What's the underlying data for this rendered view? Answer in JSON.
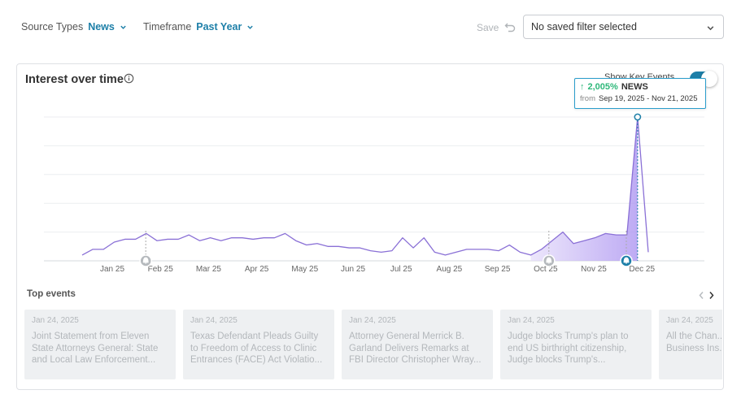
{
  "filters": {
    "source_label": "Source Types",
    "source_value": "News",
    "timeframe_label": "Timeframe",
    "timeframe_value": "Past Year",
    "save_label": "Save",
    "saved_filter_value": "No saved filter selected"
  },
  "card": {
    "title": "Interest over time",
    "key_events_label": "Show Key Events",
    "key_events_on": true
  },
  "tooltip": {
    "change": "2,005%",
    "category": "NEWS",
    "from_label": "from",
    "range": "Sep 19, 2025 - Nov 21, 2025"
  },
  "colors": {
    "accent": "#1d7fa8",
    "line": "#8a70d6",
    "area_start": "#e6defa",
    "area_end": "#a88ff0",
    "positive": "#2eb87a"
  },
  "chart_data": {
    "type": "line",
    "x_ticks": [
      "Jan 25",
      "Feb 25",
      "Mar 25",
      "Apr 25",
      "May 25",
      "Jun 25",
      "Jul 25",
      "Aug 25",
      "Sep 25",
      "Oct 25",
      "Nov 25",
      "Dec 25"
    ],
    "ylim": [
      0,
      100
    ],
    "grid": true,
    "series": [
      {
        "values": [
          4,
          8,
          8,
          13,
          15,
          15,
          19,
          14,
          15,
          15,
          18,
          14,
          16,
          14,
          16,
          16,
          15,
          16,
          16,
          19,
          14,
          11,
          12,
          10,
          10,
          9,
          9,
          7,
          6,
          7,
          16,
          9,
          16,
          6,
          4,
          6,
          8,
          8,
          8,
          7,
          11,
          6,
          4,
          8,
          14,
          20,
          12,
          14,
          16,
          19,
          18,
          18,
          100,
          6
        ]
      }
    ],
    "highlighted_points": [
      52
    ],
    "area_shading_from_index": 42,
    "key_event_markers": [
      "Feb 25",
      "Oct 25",
      "Nov 25"
    ]
  },
  "top_events": {
    "label": "Top events",
    "items": [
      {
        "date": "Jan 24, 2025",
        "title": "Joint Statement from Eleven State Attorneys General: State and Local Law Enforcement..."
      },
      {
        "date": "Jan 24, 2025",
        "title": "Texas Defendant Pleads Guilty to Freedom of Access to Clinic Entrances (FACE) Act Violatio..."
      },
      {
        "date": "Jan 24, 2025",
        "title": "Attorney General Merrick B. Garland Delivers Remarks at FBI Director Christopher Wray..."
      },
      {
        "date": "Jan 24, 2025",
        "title": "Judge blocks Trump's plan to end US birthright citizenship, Judge blocks Trump's..."
      },
      {
        "date": "Jan 24, 2025",
        "title": "All the Chan... Orders Trum... Business Ins..."
      }
    ]
  }
}
